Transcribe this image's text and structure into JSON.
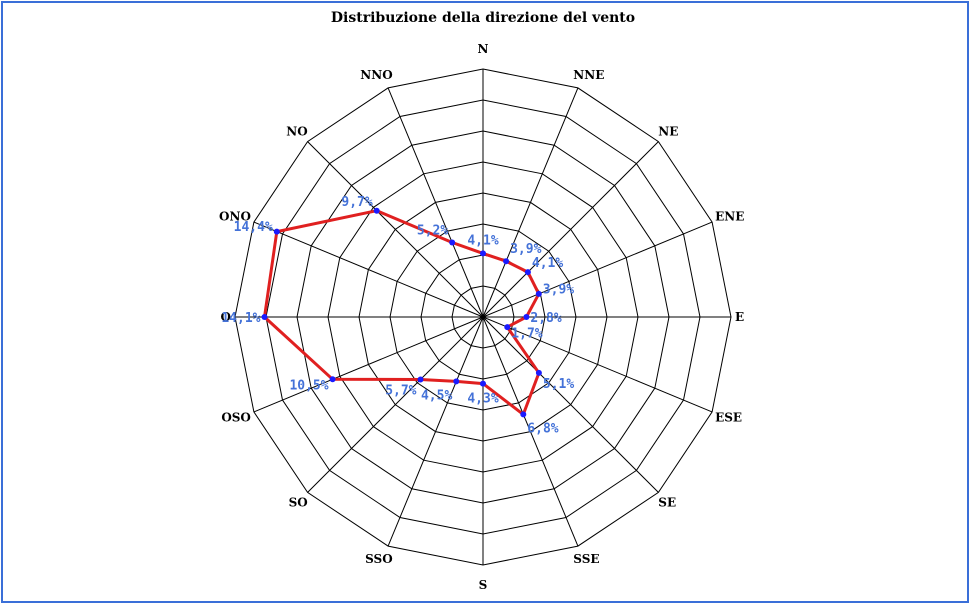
{
  "chart_data": {
    "type": "radar",
    "title": "Distribuzione della direzione del vento",
    "categories": [
      "N",
      "NNE",
      "NE",
      "ENE",
      "E",
      "ESE",
      "SE",
      "SSE",
      "S",
      "SSO",
      "SO",
      "OSO",
      "O",
      "ONO",
      "NO",
      "NNO"
    ],
    "values": [
      4.1,
      3.9,
      4.1,
      3.9,
      2.8,
      1.7,
      5.1,
      6.8,
      4.3,
      4.5,
      5.7,
      10.5,
      14.1,
      14.4,
      9.7,
      5.2
    ],
    "value_labels": [
      "4,1%",
      "3,9%",
      "4,1%",
      "3,9%",
      "2,8%",
      "1,7%",
      "5,1%",
      "6,8%",
      "4,3%",
      "4,5%",
      "5,7%",
      "10,5%",
      "14,1%",
      "14,4%",
      "9,7%",
      "5,2%"
    ],
    "rlim": [
      0,
      16
    ],
    "ring_step": 2,
    "grid": true,
    "line_color": "#e02020",
    "marker_color": "#1a1aff",
    "label_color": "#4472d8",
    "frame_color": "#3a6fd8"
  }
}
